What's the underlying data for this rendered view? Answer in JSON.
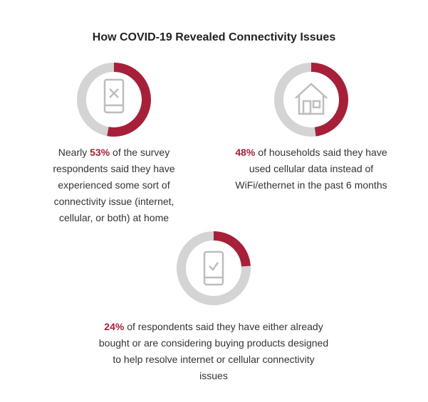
{
  "title": "How COVID-19 Revealed Connectivity Issues",
  "chart_data": [
    {
      "type": "donut",
      "values": [
        53,
        47
      ],
      "value_labels": [
        "53%",
        null
      ],
      "colors": [
        "#a6203a",
        "#d4d4d4"
      ],
      "text_before": "Nearly ",
      "text_after": " of the survey respondents said they have experienced some sort of connectivity issue (internet, cellular, or both) at home"
    },
    {
      "type": "donut",
      "values": [
        48,
        52
      ],
      "value_labels": [
        "48%",
        null
      ],
      "colors": [
        "#a6203a",
        "#d4d4d4"
      ],
      "text_after": " of households said they have used cellular data instead of WiFi/ethernet in the past 6 months"
    },
    {
      "type": "donut",
      "values": [
        24,
        76
      ],
      "value_labels": [
        "24%",
        null
      ],
      "colors": [
        "#a6203a",
        "#d4d4d4"
      ],
      "text_after": " of respondents said they have either already bought or are considering buying products designed to help resolve internet or cellular connectivity issues"
    }
  ]
}
